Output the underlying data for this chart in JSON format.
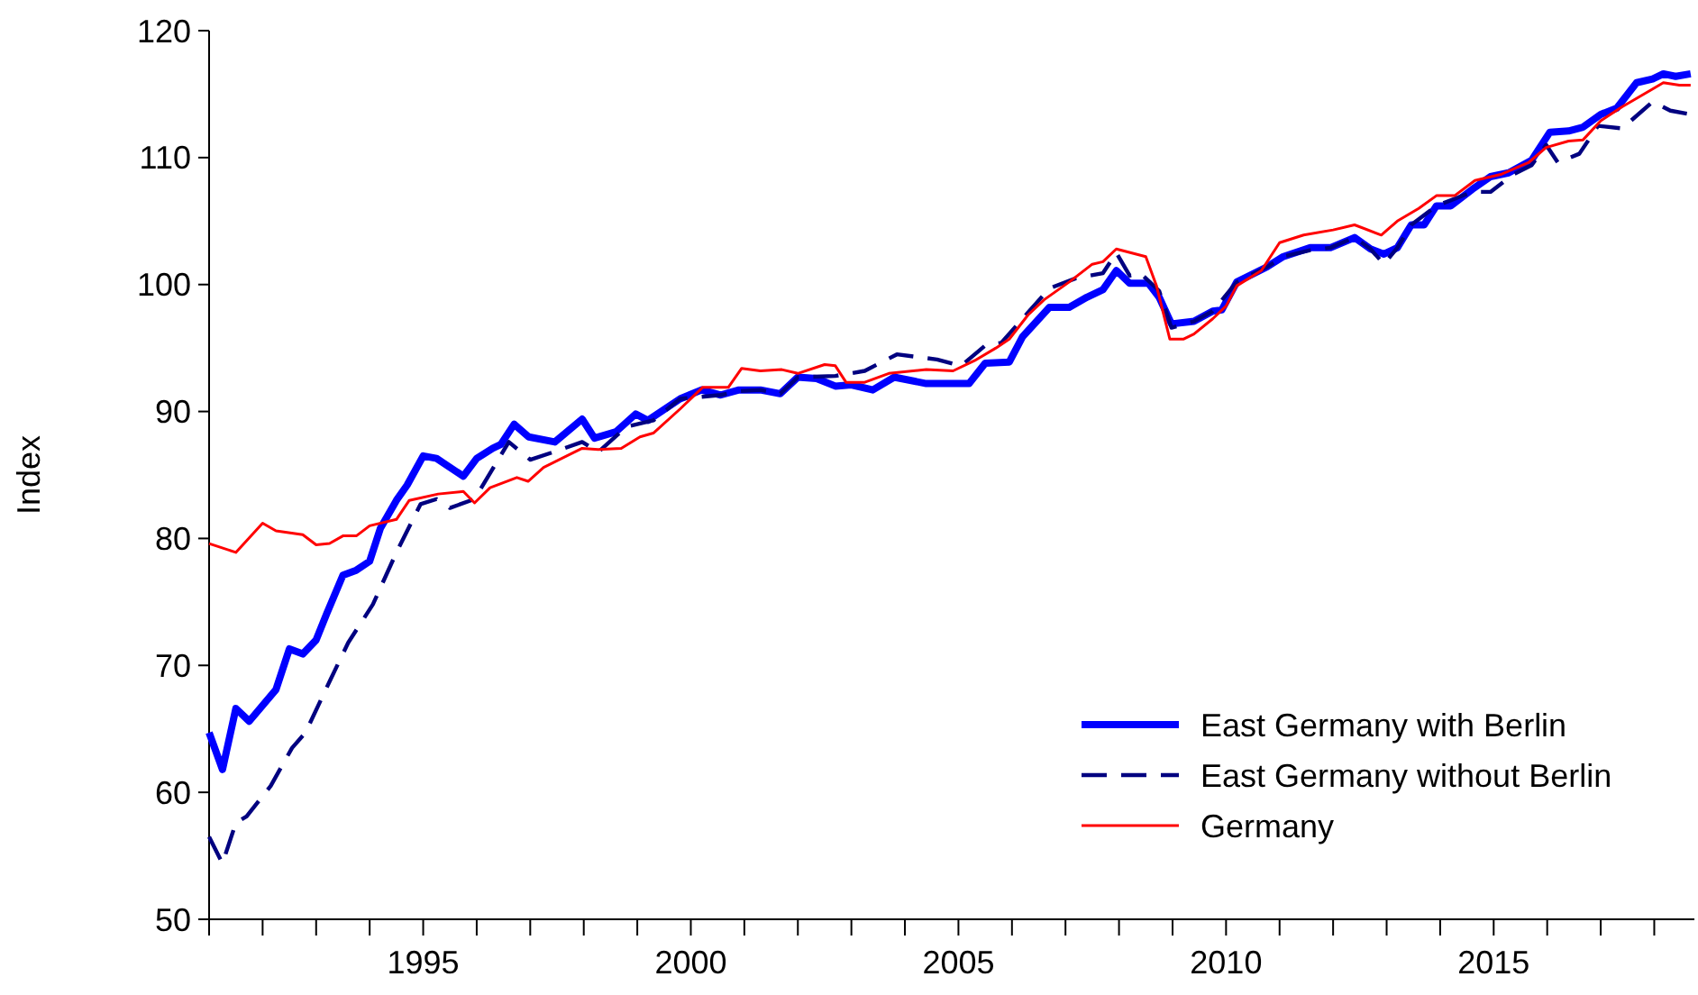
{
  "chart_data": {
    "type": "line",
    "ylabel": "Index",
    "xlim": [
      1991,
      2018.75
    ],
    "ylim": [
      50,
      120
    ],
    "yticks": [
      50,
      60,
      70,
      80,
      90,
      100,
      110,
      120
    ],
    "xticks": [
      {
        "value": 1991,
        "label": null
      },
      {
        "value": 1992,
        "label": null
      },
      {
        "value": 1993,
        "label": null
      },
      {
        "value": 1994,
        "label": null
      },
      {
        "value": 1995,
        "label": "1995"
      },
      {
        "value": 1996,
        "label": null
      },
      {
        "value": 1997,
        "label": null
      },
      {
        "value": 1998,
        "label": null
      },
      {
        "value": 1999,
        "label": null
      },
      {
        "value": 2000,
        "label": "2000"
      },
      {
        "value": 2001,
        "label": null
      },
      {
        "value": 2002,
        "label": null
      },
      {
        "value": 2003,
        "label": null
      },
      {
        "value": 2004,
        "label": null
      },
      {
        "value": 2005,
        "label": "2005"
      },
      {
        "value": 2006,
        "label": null
      },
      {
        "value": 2007,
        "label": null
      },
      {
        "value": 2008,
        "label": null
      },
      {
        "value": 2009,
        "label": null
      },
      {
        "value": 2010,
        "label": "2010"
      },
      {
        "value": 2011,
        "label": null
      },
      {
        "value": 2012,
        "label": null
      },
      {
        "value": 2013,
        "label": null
      },
      {
        "value": 2014,
        "label": null
      },
      {
        "value": 2015,
        "label": "2015"
      },
      {
        "value": 2016,
        "label": null
      },
      {
        "value": 2017,
        "label": null
      },
      {
        "value": 2018,
        "label": null
      }
    ],
    "grid": false,
    "legend": "bottom right",
    "series": [
      {
        "name": "East Germany with Berlin",
        "color": "#0000ff",
        "line_style": "solid",
        "x": [
          1991,
          1991.25,
          1991.5,
          1991.75,
          1992.25,
          1992.5,
          1992.75,
          1993,
          1993.2,
          1993.5,
          1993.75,
          1994,
          1994.2,
          1994.5,
          1994.7,
          1995,
          1995.25,
          1995.75,
          1996,
          1996.3,
          1996.45,
          1996.7,
          1996.97,
          1997.46,
          1997.97,
          1998.2,
          1998.6,
          1998.97,
          1999.2,
          1999.8,
          2000.2,
          2000.56,
          2000.9,
          2001.3,
          2001.67,
          2002,
          2002.35,
          2002.7,
          2003,
          2003.4,
          2003.8,
          2004.4,
          2005.2,
          2005.5,
          2005.95,
          2006.2,
          2006.7,
          2007.07,
          2007.4,
          2007.7,
          2007.95,
          2008.2,
          2008.55,
          2008.75,
          2008.98,
          2009.4,
          2009.75,
          2009.92,
          2010.2,
          2010.77,
          2011.07,
          2011.57,
          2011.95,
          2012.4,
          2012.7,
          2012.95,
          2013.2,
          2013.46,
          2013.7,
          2013.93,
          2014.2,
          2014.6,
          2014.94,
          2015.28,
          2015.71,
          2016.05,
          2016.4,
          2016.67,
          2017,
          2017.3,
          2017.67,
          2017.97,
          2018.17,
          2018.4,
          2018.68
        ],
        "values": [
          64.7,
          61.8,
          66.6,
          65.6,
          68.1,
          71.3,
          70.9,
          72.0,
          74.1,
          77.1,
          77.5,
          78.2,
          80.8,
          83.0,
          84.2,
          86.5,
          86.3,
          84.9,
          86.3,
          87.1,
          87.4,
          89.0,
          88.0,
          87.6,
          89.4,
          87.9,
          88.4,
          89.8,
          89.3,
          91.0,
          91.7,
          91.3,
          91.7,
          91.7,
          91.4,
          92.7,
          92.6,
          92.0,
          92.1,
          91.7,
          92.7,
          92.2,
          92.2,
          93.8,
          93.9,
          95.9,
          98.2,
          98.2,
          99.0,
          99.6,
          101.1,
          100.1,
          100.1,
          99.0,
          96.9,
          97.1,
          97.9,
          98.0,
          100.2,
          101.4,
          102.2,
          102.9,
          102.9,
          103.7,
          102.8,
          102.4,
          102.9,
          104.7,
          104.7,
          106.2,
          106.2,
          107.5,
          108.5,
          108.8,
          109.8,
          112.0,
          112.1,
          112.4,
          113.4,
          113.9,
          115.9,
          116.2,
          116.6,
          116.4,
          116.6
        ]
      },
      {
        "name": "East Germany without Berlin",
        "color": "#000080",
        "line_style": "dashed",
        "x": [
          1991,
          1991.25,
          1991.5,
          1991.7,
          1992.15,
          1992.55,
          1992.8,
          1993.27,
          1993.6,
          1994.06,
          1994.5,
          1994.95,
          1995.25,
          1995.5,
          1995.96,
          1996.6,
          1997,
          1997.5,
          1997.97,
          1998.27,
          1998.8,
          1999.3,
          1999.8,
          2000.56,
          2000.9,
          2001.3,
          2001.67,
          2002,
          2002.7,
          2003.25,
          2003.85,
          2004.6,
          2005.05,
          2005.5,
          2005.8,
          2006.3,
          2006.7,
          2007.2,
          2007.7,
          2007.95,
          2008.2,
          2008.4,
          2008.75,
          2008.98,
          2009.4,
          2009.75,
          2010.2,
          2010.77,
          2011.07,
          2011.57,
          2011.95,
          2012.4,
          2012.7,
          2012.95,
          2013.2,
          2013.46,
          2013.93,
          2014.6,
          2014.94,
          2015.38,
          2015.71,
          2015.98,
          2016.2,
          2016.6,
          2016.95,
          2017.4,
          2017.97,
          2018.3,
          2018.68
        ],
        "values": [
          56.5,
          54.4,
          57.6,
          58.1,
          60.5,
          63.5,
          64.7,
          68.9,
          71.8,
          74.8,
          78.9,
          82.7,
          83.1,
          82.4,
          83.1,
          87.6,
          86.2,
          86.9,
          87.6,
          86.8,
          88.8,
          89.3,
          91.0,
          91.3,
          91.6,
          91.7,
          91.4,
          92.7,
          92.8,
          93.2,
          94.5,
          94.1,
          93.6,
          95.2,
          95.4,
          97.8,
          99.7,
          100.5,
          100.9,
          102.5,
          100.7,
          100.9,
          99.5,
          96.6,
          97.1,
          97.9,
          100.2,
          101.4,
          102.2,
          102.7,
          102.9,
          103.7,
          102.8,
          101.6,
          102.9,
          104.7,
          106.2,
          107.3,
          107.3,
          108.7,
          109.4,
          111.0,
          109.6,
          110.3,
          112.5,
          112.3,
          114.4,
          113.7,
          113.4
        ]
      },
      {
        "name": "Germany",
        "color": "#ff0000",
        "line_style": "solid",
        "x": [
          1991,
          1991.5,
          1992,
          1992.25,
          1992.75,
          1993,
          1993.25,
          1993.5,
          1993.75,
          1994,
          1994.5,
          1994.74,
          1995.28,
          1995.75,
          1995.96,
          1996.25,
          1996.75,
          1996.96,
          1997.25,
          1997.97,
          1998.27,
          1998.7,
          1999.05,
          1999.3,
          1999.8,
          2000.22,
          2000.7,
          2000.95,
          2001.3,
          2001.7,
          2002,
          2002.5,
          2002.7,
          2002.9,
          2003.25,
          2003.7,
          2004.4,
          2004.9,
          2005.3,
          2005.7,
          2005.95,
          2006.3,
          2006.6,
          2007.07,
          2007.5,
          2007.7,
          2007.95,
          2008.5,
          2008.7,
          2008.95,
          2009.2,
          2009.4,
          2009.75,
          2010,
          2010.2,
          2010.66,
          2011,
          2011.45,
          2012,
          2012.4,
          2012.9,
          2013.2,
          2013.6,
          2013.93,
          2014.27,
          2014.65,
          2015.15,
          2015.65,
          2015.98,
          2016.4,
          2016.67,
          2017,
          2017.4,
          2017.97,
          2018.17,
          2018.47,
          2018.68
        ],
        "values": [
          79.6,
          78.9,
          81.2,
          80.6,
          80.3,
          79.5,
          79.6,
          80.2,
          80.2,
          81.0,
          81.5,
          83.0,
          83.5,
          83.7,
          82.8,
          84.0,
          84.8,
          84.5,
          85.6,
          87.1,
          87.0,
          87.1,
          88.0,
          88.3,
          90.2,
          91.9,
          91.9,
          93.4,
          93.2,
          93.3,
          93.0,
          93.7,
          93.6,
          92.3,
          92.3,
          93.0,
          93.3,
          93.2,
          94.0,
          95.0,
          95.7,
          97.6,
          98.8,
          100.2,
          101.6,
          101.8,
          102.8,
          102.2,
          99.9,
          95.7,
          95.7,
          96.1,
          97.3,
          98.3,
          99.9,
          101.1,
          103.3,
          103.9,
          104.3,
          104.7,
          103.9,
          105.0,
          106.0,
          107.0,
          107.0,
          108.2,
          108.7,
          109.6,
          110.8,
          111.3,
          111.4,
          112.9,
          114.0,
          115.4,
          115.9,
          115.7,
          115.7
        ]
      }
    ]
  }
}
